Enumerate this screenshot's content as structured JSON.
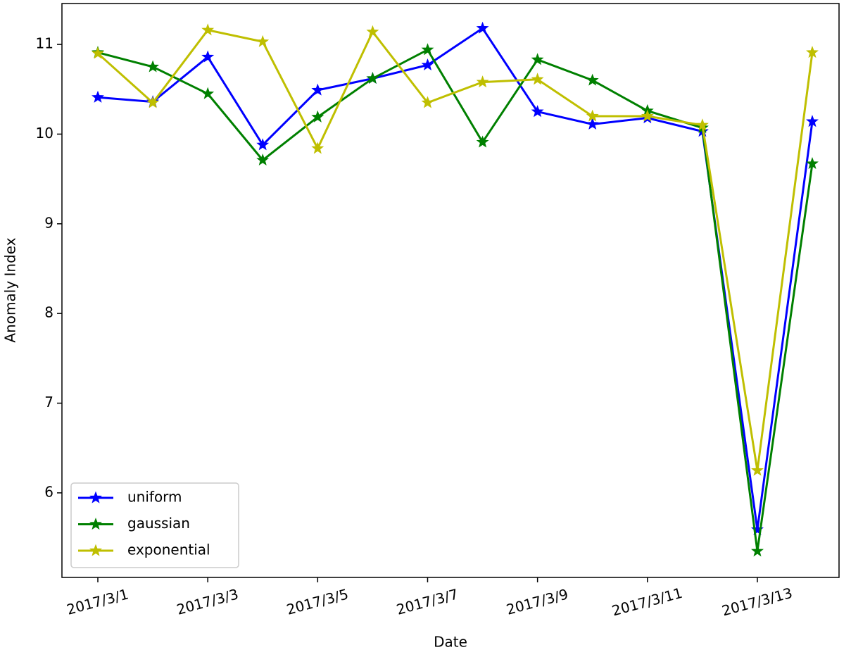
{
  "chart_data": {
    "type": "line",
    "x_label": "Date",
    "y_label": "Anomaly Index",
    "categories": [
      "2017/3/1",
      null,
      "2017/3/3",
      null,
      "2017/3/5",
      null,
      "2017/3/7",
      null,
      "2017/3/9",
      null,
      "2017/3/11",
      null,
      "2017/3/13",
      null
    ],
    "series": [
      {
        "name": "uniform",
        "color": "#0000ff",
        "values": [
          10.41,
          10.36,
          10.86,
          9.88,
          10.49,
          10.62,
          10.77,
          11.18,
          10.25,
          10.11,
          10.18,
          10.03,
          5.59,
          10.14
        ]
      },
      {
        "name": "gaussian",
        "color": "#008000",
        "values": [
          10.91,
          10.75,
          10.45,
          9.71,
          10.19,
          10.62,
          10.94,
          9.91,
          10.83,
          10.6,
          10.26,
          10.07,
          5.35,
          9.67
        ]
      },
      {
        "name": "exponential",
        "color": "#bfbf00",
        "values": [
          10.9,
          10.35,
          11.16,
          11.03,
          9.84,
          11.14,
          10.35,
          10.58,
          10.61,
          10.2,
          10.2,
          10.1,
          6.25,
          10.91
        ]
      }
    ],
    "ylim": [
      5.057,
      11.456
    ],
    "yticks": [
      6,
      7,
      8,
      9,
      10,
      11
    ],
    "legend": "lower left",
    "marker": "star"
  }
}
